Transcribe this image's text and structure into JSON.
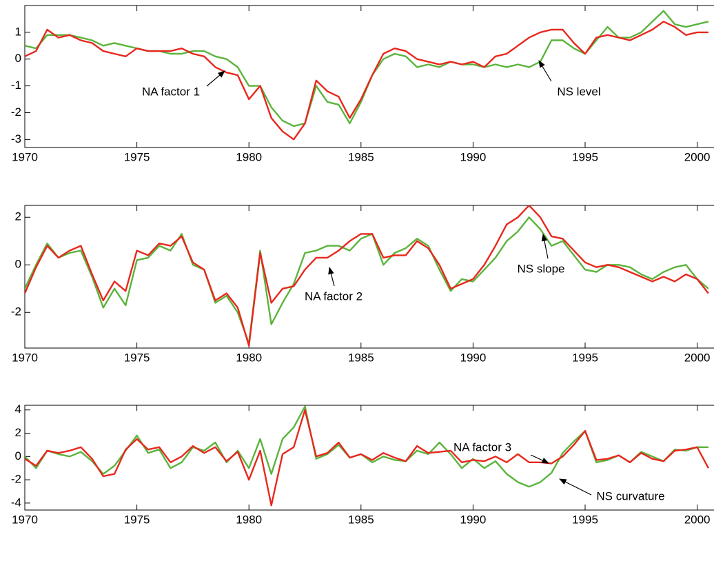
{
  "chart_data": [
    {
      "type": "line",
      "x": [
        1970,
        1970.5,
        1971,
        1971.5,
        1972,
        1972.5,
        1973,
        1973.5,
        1974,
        1974.5,
        1975,
        1975.5,
        1976,
        1976.5,
        1977,
        1977.5,
        1978,
        1978.5,
        1979,
        1979.5,
        1980,
        1980.5,
        1981,
        1981.5,
        1982,
        1982.5,
        1983,
        1983.5,
        1984,
        1984.5,
        1985,
        1985.5,
        1986,
        1986.5,
        1987,
        1987.5,
        1988,
        1988.5,
        1989,
        1989.5,
        1990,
        1990.5,
        1991,
        1991.5,
        1992,
        1992.5,
        1993,
        1993.5,
        1994,
        1994.5,
        1995,
        1995.5,
        1996,
        1996.5,
        1997,
        1997.5,
        1998,
        1998.5,
        1999,
        1999.5,
        2000,
        2000.5
      ],
      "series": [
        {
          "name": "NS level",
          "color": "#5ab43c",
          "values": [
            0.5,
            0.4,
            0.9,
            0.9,
            0.9,
            0.8,
            0.7,
            0.5,
            0.6,
            0.5,
            0.4,
            0.3,
            0.3,
            0.2,
            0.2,
            0.3,
            0.3,
            0.1,
            0.0,
            -0.3,
            -1.0,
            -1.0,
            -1.8,
            -2.3,
            -2.5,
            -2.4,
            -1.0,
            -1.6,
            -1.7,
            -2.4,
            -1.6,
            -0.6,
            0.0,
            0.2,
            0.1,
            -0.3,
            -0.2,
            -0.3,
            -0.1,
            -0.2,
            -0.2,
            -0.3,
            -0.2,
            -0.3,
            -0.2,
            -0.3,
            -0.1,
            0.7,
            0.7,
            0.4,
            0.2,
            0.7,
            1.2,
            0.8,
            0.8,
            1.0,
            1.4,
            1.8,
            1.3,
            1.2,
            1.3,
            1.4
          ]
        },
        {
          "name": "NA factor 1",
          "color": "#e8281e",
          "values": [
            0.1,
            0.3,
            1.1,
            0.8,
            0.9,
            0.7,
            0.6,
            0.3,
            0.2,
            0.1,
            0.4,
            0.3,
            0.3,
            0.3,
            0.4,
            0.2,
            0.1,
            -0.3,
            -0.5,
            -0.6,
            -1.5,
            -1.0,
            -2.2,
            -2.7,
            -3.0,
            -2.4,
            -0.8,
            -1.2,
            -1.4,
            -2.2,
            -1.5,
            -0.6,
            0.2,
            0.4,
            0.3,
            0.0,
            -0.1,
            -0.2,
            -0.1,
            -0.2,
            -0.1,
            -0.3,
            0.1,
            0.2,
            0.5,
            0.8,
            1.0,
            1.1,
            1.1,
            0.6,
            0.2,
            0.8,
            0.9,
            0.8,
            0.7,
            0.9,
            1.1,
            1.4,
            1.2,
            0.9,
            1.0,
            1.0
          ]
        }
      ],
      "xlim": [
        1970,
        2000.75
      ],
      "xticks": [
        1970,
        1975,
        1980,
        1985,
        1990,
        1995,
        2000
      ],
      "ylim": [
        -3.3,
        2
      ],
      "yticks": [
        -3,
        -2,
        -1,
        0,
        1
      ],
      "grid": false
    },
    {
      "type": "line",
      "x": [
        1970,
        1970.5,
        1971,
        1971.5,
        1972,
        1972.5,
        1973,
        1973.5,
        1974,
        1974.5,
        1975,
        1975.5,
        1976,
        1976.5,
        1977,
        1977.5,
        1978,
        1978.5,
        1979,
        1979.5,
        1980,
        1980.5,
        1981,
        1981.5,
        1982,
        1982.5,
        1983,
        1983.5,
        1984,
        1984.5,
        1985,
        1985.5,
        1986,
        1986.5,
        1987,
        1987.5,
        1988,
        1988.5,
        1989,
        1989.5,
        1990,
        1990.5,
        1991,
        1991.5,
        1992,
        1992.5,
        1993,
        1993.5,
        1994,
        1994.5,
        1995,
        1995.5,
        1996,
        1996.5,
        1997,
        1997.5,
        1998,
        1998.5,
        1999,
        1999.5,
        2000,
        2000.5
      ],
      "series": [
        {
          "name": "NS slope",
          "color": "#5ab43c",
          "values": [
            -1.0,
            0.0,
            0.9,
            0.3,
            0.5,
            0.6,
            -0.5,
            -1.8,
            -1.0,
            -1.7,
            0.2,
            0.3,
            0.8,
            0.6,
            1.3,
            0.0,
            -0.2,
            -1.6,
            -1.3,
            -2.0,
            -3.3,
            0.6,
            -2.5,
            -1.6,
            -0.8,
            0.5,
            0.6,
            0.8,
            0.8,
            0.6,
            1.1,
            1.3,
            0.0,
            0.5,
            0.7,
            1.1,
            0.8,
            -0.2,
            -1.1,
            -0.6,
            -0.7,
            -0.2,
            0.3,
            1.0,
            1.4,
            2.0,
            1.5,
            0.8,
            1.0,
            0.4,
            -0.2,
            -0.3,
            0.0,
            0.0,
            -0.1,
            -0.4,
            -0.6,
            -0.3,
            -0.1,
            0.0,
            -0.6,
            -1.0
          ]
        },
        {
          "name": "NA factor 2",
          "color": "#e8281e",
          "values": [
            -1.2,
            -0.1,
            0.8,
            0.3,
            0.6,
            0.8,
            -0.4,
            -1.5,
            -0.7,
            -1.1,
            0.6,
            0.4,
            0.9,
            0.8,
            1.2,
            0.1,
            -0.2,
            -1.5,
            -1.2,
            -1.8,
            -3.4,
            0.5,
            -1.6,
            -1.0,
            -0.9,
            -0.2,
            0.3,
            0.3,
            0.6,
            1.0,
            1.3,
            1.3,
            0.3,
            0.4,
            0.4,
            1.0,
            0.7,
            0.0,
            -1.0,
            -0.8,
            -0.6,
            0.0,
            0.8,
            1.7,
            2.0,
            2.5,
            2.0,
            1.2,
            1.1,
            0.6,
            0.1,
            -0.1,
            0.0,
            -0.1,
            -0.3,
            -0.5,
            -0.7,
            -0.5,
            -0.7,
            -0.4,
            -0.6,
            -1.2
          ]
        }
      ],
      "xlim": [
        1970,
        2000.75
      ],
      "xticks": [
        1970,
        1975,
        1980,
        1985,
        1990,
        1995,
        2000
      ],
      "ylim": [
        -3.5,
        2.5
      ],
      "yticks": [
        -2,
        0,
        2
      ],
      "grid": false
    },
    {
      "type": "line",
      "x": [
        1970,
        1970.5,
        1971,
        1971.5,
        1972,
        1972.5,
        1973,
        1973.5,
        1974,
        1974.5,
        1975,
        1975.5,
        1976,
        1976.5,
        1977,
        1977.5,
        1978,
        1978.5,
        1979,
        1979.5,
        1980,
        1980.5,
        1981,
        1981.5,
        1982,
        1982.5,
        1983,
        1983.5,
        1984,
        1984.5,
        1985,
        1985.5,
        1986,
        1986.5,
        1987,
        1987.5,
        1988,
        1988.5,
        1989,
        1989.5,
        1990,
        1990.5,
        1991,
        1991.5,
        1992,
        1992.5,
        1993,
        1993.5,
        1994,
        1994.5,
        1995,
        1995.5,
        1996,
        1996.5,
        1997,
        1997.5,
        1998,
        1998.5,
        1999,
        1999.5,
        2000,
        2000.5
      ],
      "series": [
        {
          "name": "NS curvature",
          "color": "#5ab43c",
          "values": [
            0.0,
            -1.0,
            0.5,
            0.2,
            0.0,
            0.4,
            -0.4,
            -1.5,
            -0.8,
            0.5,
            1.8,
            0.3,
            0.6,
            -1.0,
            -0.5,
            0.8,
            0.5,
            1.2,
            -0.5,
            0.5,
            -1.0,
            1.5,
            -1.5,
            1.5,
            2.5,
            4.3,
            -0.2,
            0.2,
            1.0,
            -0.1,
            0.2,
            -0.5,
            0.0,
            -0.3,
            -0.4,
            0.5,
            0.2,
            1.2,
            0.2,
            -1.0,
            -0.2,
            -1.0,
            -0.4,
            -1.5,
            -2.2,
            -2.6,
            -2.2,
            -1.4,
            0.3,
            1.3,
            2.2,
            -0.5,
            -0.3,
            0.1,
            -0.5,
            0.4,
            0.0,
            -0.4,
            0.6,
            0.5,
            0.8,
            0.8
          ]
        },
        {
          "name": "NA factor 3",
          "color": "#e8281e",
          "values": [
            -0.2,
            -0.8,
            0.5,
            0.3,
            0.5,
            0.8,
            -0.2,
            -1.7,
            -1.5,
            0.6,
            1.5,
            0.6,
            0.8,
            -0.5,
            0.0,
            0.9,
            0.3,
            0.8,
            -0.4,
            0.4,
            -2.0,
            0.5,
            -4.2,
            0.2,
            0.8,
            4.0,
            0.0,
            0.3,
            1.2,
            -0.1,
            0.2,
            -0.3,
            0.3,
            -0.1,
            -0.4,
            0.9,
            0.3,
            0.4,
            0.5,
            -0.5,
            -0.3,
            -0.4,
            0.0,
            -0.5,
            0.2,
            -0.5,
            -0.5,
            -0.6,
            0.0,
            1.0,
            2.2,
            -0.3,
            -0.2,
            0.1,
            -0.5,
            0.3,
            -0.2,
            -0.4,
            0.5,
            0.6,
            0.8,
            -1.0
          ]
        }
      ],
      "xlim": [
        1970,
        2000.75
      ],
      "xticks": [
        1970,
        1975,
        1980,
        1985,
        1990,
        1995,
        2000
      ],
      "ylim": [
        -4.6,
        4.4
      ],
      "yticks": [
        -4,
        -2,
        0,
        2,
        4
      ],
      "grid": false
    }
  ]
}
